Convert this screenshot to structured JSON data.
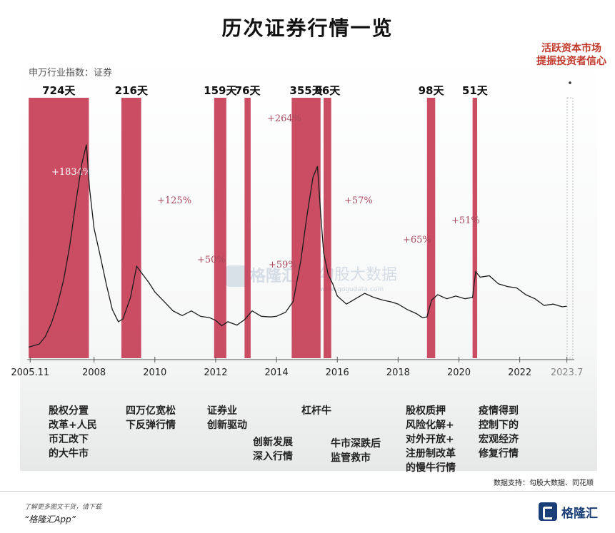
{
  "title": "历次证券行情一览",
  "index_label": "申万行业指数：证券",
  "top_note": "活跃资本市场\n提振投资者信心",
  "watermark": {
    "main": "勾股大数据",
    "sub": "www.gogudata.com",
    "brand": "格隆汇"
  },
  "source": "数据支持：勾股大数据、同花顺",
  "footer": {
    "line1": "了解更多图文干货，请下载",
    "line2": "“格隆汇App”",
    "logo": "格隆汇"
  },
  "colors": {
    "band": "#c43a52",
    "line": "#1b1b1b",
    "pct": "#a8485c",
    "note": "#c0392b"
  },
  "chart_data": {
    "type": "line",
    "xlim": [
      2005.8,
      2023.7
    ],
    "x_ticks": [
      {
        "x": 2005.9,
        "label": "2005.11"
      },
      {
        "x": 2008,
        "label": "2008"
      },
      {
        "x": 2010,
        "label": "2010"
      },
      {
        "x": 2012,
        "label": "2012"
      },
      {
        "x": 2014,
        "label": "2014"
      },
      {
        "x": 2016,
        "label": "2016"
      },
      {
        "x": 2018,
        "label": "2018"
      },
      {
        "x": 2020,
        "label": "2020"
      },
      {
        "x": 2022,
        "label": "2022"
      },
      {
        "x": 2023.55,
        "label": "2023.7"
      }
    ],
    "series": [
      {
        "x": [
          2005.85,
          2006.2,
          2006.4,
          2006.6,
          2006.8,
          2007.0,
          2007.2,
          2007.4,
          2007.6,
          2007.75,
          2007.85,
          2008.0,
          2008.2,
          2008.4,
          2008.6,
          2008.8,
          2008.95,
          2009.2,
          2009.4,
          2009.6,
          2009.8,
          2010.0,
          2010.3,
          2010.6,
          2010.9,
          2011.2,
          2011.5,
          2011.8,
          2012.0,
          2012.2,
          2012.4,
          2012.7,
          2012.95,
          2013.2,
          2013.5,
          2013.8,
          2014.0,
          2014.3,
          2014.55,
          2014.8,
          2015.0,
          2015.2,
          2015.35,
          2015.45,
          2015.55,
          2015.7,
          2015.85,
          2016.0,
          2016.3,
          2016.6,
          2016.9,
          2017.2,
          2017.5,
          2017.8,
          2018.0,
          2018.3,
          2018.6,
          2018.8,
          2018.95,
          2019.1,
          2019.3,
          2019.6,
          2019.9,
          2020.2,
          2020.45,
          2020.55,
          2020.7,
          2021.0,
          2021.3,
          2021.6,
          2021.9,
          2022.2,
          2022.5,
          2022.8,
          2023.1,
          2023.4,
          2023.55
        ],
        "y": [
          820,
          1050,
          1600,
          2600,
          4000,
          5800,
          8300,
          11500,
          14400,
          15800,
          12600,
          9600,
          7600,
          5500,
          3600,
          2700,
          2900,
          4500,
          6800,
          6200,
          5600,
          4900,
          4200,
          3500,
          3150,
          3500,
          3100,
          3000,
          2800,
          2400,
          2700,
          2450,
          2850,
          3500,
          3100,
          3050,
          3100,
          3400,
          4200,
          7200,
          10500,
          13400,
          14200,
          10800,
          7800,
          6200,
          5500,
          4600,
          4000,
          4400,
          4800,
          4500,
          4300,
          4150,
          4000,
          3600,
          3300,
          3000,
          3050,
          4300,
          4700,
          4400,
          4600,
          4400,
          4500,
          6400,
          6000,
          6100,
          5500,
          5300,
          5200,
          4700,
          4400,
          3900,
          4000,
          3800,
          3850
        ]
      }
    ],
    "ylim": [
      0,
      17000
    ],
    "bands": [
      {
        "start": 2005.85,
        "end": 2007.83,
        "label": "724天",
        "pct": "+1834%"
      },
      {
        "start": 2008.9,
        "end": 2009.55,
        "label": "216天",
        "pct": "+125%"
      },
      {
        "start": 2011.95,
        "end": 2012.35,
        "label": "159天",
        "pct": "+50%"
      },
      {
        "start": 2012.95,
        "end": 2013.15,
        "label": "76天",
        "pct": "+59%"
      },
      {
        "start": 2014.5,
        "end": 2015.45,
        "label": "355天",
        "pct": "+264%"
      },
      {
        "start": 2015.55,
        "end": 2015.8,
        "label": "86天",
        "pct": "+57%"
      },
      {
        "start": 2018.95,
        "end": 2019.22,
        "label": "98天",
        "pct": "+65%"
      },
      {
        "start": 2020.45,
        "end": 2020.6,
        "label": "51天",
        "pct": "+51%"
      }
    ],
    "events": [
      {
        "text": "股权分置\n改革+人民\n币汇改下\n的大牛市"
      },
      {
        "text": "四万亿宽松\n下反弹行情"
      },
      {
        "text": "证券业\n创新驱动"
      },
      {
        "text": "创新发展\n深入行情"
      },
      {
        "text": "杠杆牛"
      },
      {
        "text": "牛市深跌后\n监管救市"
      },
      {
        "text": "股权质押\n风险化解+\n对外开放+\n注册制改革\n的慢牛行情"
      },
      {
        "text": "疫情得到\n控制下的\n宏观经济\n修复行情"
      }
    ]
  }
}
